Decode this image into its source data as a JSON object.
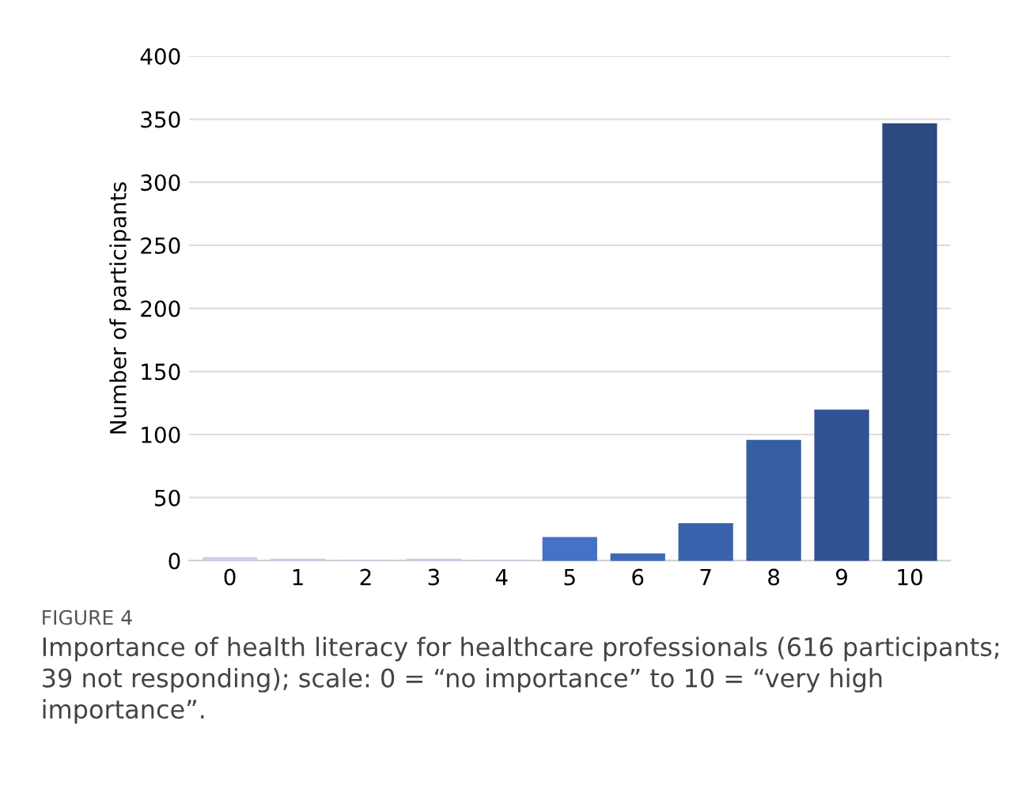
{
  "chart_data": {
    "type": "bar",
    "ylabel": "Number of participants",
    "categories": [
      "0",
      "1",
      "2",
      "3",
      "4",
      "5",
      "6",
      "7",
      "8",
      "9",
      "10"
    ],
    "values": [
      2,
      1,
      0,
      1,
      0,
      18,
      5,
      29,
      95,
      119,
      346
    ],
    "colors": [
      "#c9d0ea",
      "#c9d0ea",
      "#c9d0ea",
      "#c9d0ea",
      "#c9d0ea",
      "#4472c4",
      "#3f68b6",
      "#3b63ad",
      "#365ea0",
      "#2f5394",
      "#2a4a80"
    ],
    "ylim": [
      0,
      400
    ],
    "yticks": [
      0,
      50,
      100,
      150,
      200,
      250,
      300,
      350,
      400
    ],
    "grid": "y",
    "annotations": [
      "FIGURE 4",
      "Importance of health literacy for healthcare professionals (616 participants; 39 not responding); scale: 0 = “no importance” to 10 = “very high importance”."
    ]
  }
}
